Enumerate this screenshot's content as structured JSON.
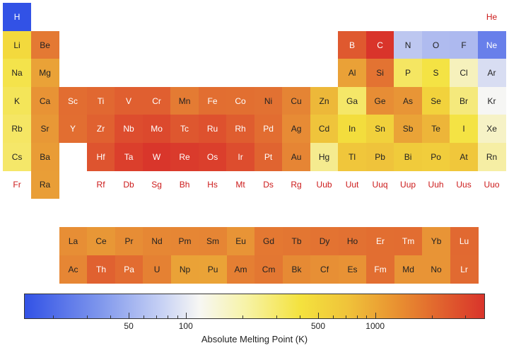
{
  "chart_data": {
    "type": "heatmap",
    "colorbar": {
      "label": "Absolute Melting Point (K)",
      "scale": "log",
      "range": [
        14,
        3800
      ],
      "tick_labels": [
        {
          "value": 50,
          "label": "50"
        },
        {
          "value": 100,
          "label": "100"
        },
        {
          "value": 500,
          "label": "500"
        },
        {
          "value": 1000,
          "label": "1000"
        }
      ],
      "minor_ticks": [
        20,
        30,
        40,
        60,
        70,
        80,
        90,
        200,
        300,
        400,
        600,
        700,
        800,
        900,
        2000,
        3000
      ],
      "colors": [
        "#3252e6",
        "#f7f7f4",
        "#f4e23e",
        "#d9342b"
      ]
    },
    "elements": [
      {
        "symbol": "H",
        "period": 1,
        "group": 1,
        "melting_point": 14
      },
      {
        "symbol": "He",
        "period": 1,
        "group": 18,
        "melting_point": null
      },
      {
        "symbol": "Li",
        "period": 2,
        "group": 1,
        "melting_point": 454
      },
      {
        "symbol": "Be",
        "period": 2,
        "group": 2,
        "melting_point": 1560
      },
      {
        "symbol": "B",
        "period": 2,
        "group": 13,
        "melting_point": 2349
      },
      {
        "symbol": "C",
        "period": 2,
        "group": 14,
        "melting_point": 3800
      },
      {
        "symbol": "N",
        "period": 2,
        "group": 15,
        "melting_point": 63
      },
      {
        "symbol": "O",
        "period": 2,
        "group": 16,
        "melting_point": 54
      },
      {
        "symbol": "F",
        "period": 2,
        "group": 17,
        "melting_point": 53
      },
      {
        "symbol": "Ne",
        "period": 2,
        "group": 18,
        "melting_point": 25
      },
      {
        "symbol": "Na",
        "period": 3,
        "group": 1,
        "melting_point": 371
      },
      {
        "symbol": "Mg",
        "period": 3,
        "group": 2,
        "melting_point": 923
      },
      {
        "symbol": "Al",
        "period": 3,
        "group": 13,
        "melting_point": 933
      },
      {
        "symbol": "Si",
        "period": 3,
        "group": 14,
        "melting_point": 1687
      },
      {
        "symbol": "P",
        "period": 3,
        "group": 15,
        "melting_point": 317
      },
      {
        "symbol": "S",
        "period": 3,
        "group": 16,
        "melting_point": 388
      },
      {
        "symbol": "Cl",
        "period": 3,
        "group": 17,
        "melting_point": 172
      },
      {
        "symbol": "Ar",
        "period": 3,
        "group": 18,
        "melting_point": 84
      },
      {
        "symbol": "K",
        "period": 4,
        "group": 1,
        "melting_point": 337
      },
      {
        "symbol": "Ca",
        "period": 4,
        "group": 2,
        "melting_point": 1115
      },
      {
        "symbol": "Sc",
        "period": 4,
        "group": 3,
        "melting_point": 1814
      },
      {
        "symbol": "Ti",
        "period": 4,
        "group": 4,
        "melting_point": 1941
      },
      {
        "symbol": "V",
        "period": 4,
        "group": 5,
        "melting_point": 2183
      },
      {
        "symbol": "Cr",
        "period": 4,
        "group": 6,
        "melting_point": 2180
      },
      {
        "symbol": "Mn",
        "period": 4,
        "group": 7,
        "melting_point": 1519
      },
      {
        "symbol": "Fe",
        "period": 4,
        "group": 8,
        "melting_point": 1811
      },
      {
        "symbol": "Co",
        "period": 4,
        "group": 9,
        "melting_point": 1768
      },
      {
        "symbol": "Ni",
        "period": 4,
        "group": 10,
        "melting_point": 1728
      },
      {
        "symbol": "Cu",
        "period": 4,
        "group": 11,
        "melting_point": 1358
      },
      {
        "symbol": "Zn",
        "period": 4,
        "group": 12,
        "melting_point": 693
      },
      {
        "symbol": "Ga",
        "period": 4,
        "group": 13,
        "melting_point": 303
      },
      {
        "symbol": "Ge",
        "period": 4,
        "group": 14,
        "melting_point": 1211
      },
      {
        "symbol": "As",
        "period": 4,
        "group": 15,
        "melting_point": 1090
      },
      {
        "symbol": "Se",
        "period": 4,
        "group": 16,
        "melting_point": 494
      },
      {
        "symbol": "Br",
        "period": 4,
        "group": 17,
        "melting_point": 266
      },
      {
        "symbol": "Kr",
        "period": 4,
        "group": 18,
        "melting_point": 116
      },
      {
        "symbol": "Rb",
        "period": 5,
        "group": 1,
        "melting_point": 312
      },
      {
        "symbol": "Sr",
        "period": 5,
        "group": 2,
        "melting_point": 1050
      },
      {
        "symbol": "Y",
        "period": 5,
        "group": 3,
        "melting_point": 1799
      },
      {
        "symbol": "Zr",
        "period": 5,
        "group": 4,
        "melting_point": 2128
      },
      {
        "symbol": "Nb",
        "period": 5,
        "group": 5,
        "melting_point": 2750
      },
      {
        "symbol": "Mo",
        "period": 5,
        "group": 6,
        "melting_point": 2896
      },
      {
        "symbol": "Tc",
        "period": 5,
        "group": 7,
        "melting_point": 2430
      },
      {
        "symbol": "Ru",
        "period": 5,
        "group": 8,
        "melting_point": 2607
      },
      {
        "symbol": "Rh",
        "period": 5,
        "group": 9,
        "melting_point": 2237
      },
      {
        "symbol": "Pd",
        "period": 5,
        "group": 10,
        "melting_point": 1828
      },
      {
        "symbol": "Ag",
        "period": 5,
        "group": 11,
        "melting_point": 1235
      },
      {
        "symbol": "Cd",
        "period": 5,
        "group": 12,
        "melting_point": 594
      },
      {
        "symbol": "In",
        "period": 5,
        "group": 13,
        "melting_point": 430
      },
      {
        "symbol": "Sn",
        "period": 5,
        "group": 14,
        "melting_point": 505
      },
      {
        "symbol": "Sb",
        "period": 5,
        "group": 15,
        "melting_point": 904
      },
      {
        "symbol": "Te",
        "period": 5,
        "group": 16,
        "melting_point": 723
      },
      {
        "symbol": "I",
        "period": 5,
        "group": 17,
        "melting_point": 387
      },
      {
        "symbol": "Xe",
        "period": 5,
        "group": 18,
        "melting_point": 161
      },
      {
        "symbol": "Cs",
        "period": 6,
        "group": 1,
        "melting_point": 302
      },
      {
        "symbol": "Ba",
        "period": 6,
        "group": 2,
        "melting_point": 1000
      },
      {
        "symbol": "Hf",
        "period": 6,
        "group": 4,
        "melting_point": 2506
      },
      {
        "symbol": "Ta",
        "period": 6,
        "group": 5,
        "melting_point": 3290
      },
      {
        "symbol": "W",
        "period": 6,
        "group": 6,
        "melting_point": 3695
      },
      {
        "symbol": "Re",
        "period": 6,
        "group": 7,
        "melting_point": 3459
      },
      {
        "symbol": "Os",
        "period": 6,
        "group": 8,
        "melting_point": 3306
      },
      {
        "symbol": "Ir",
        "period": 6,
        "group": 9,
        "melting_point": 2739
      },
      {
        "symbol": "Pt",
        "period": 6,
        "group": 10,
        "melting_point": 2041
      },
      {
        "symbol": "Au",
        "period": 6,
        "group": 11,
        "melting_point": 1337
      },
      {
        "symbol": "Hg",
        "period": 6,
        "group": 12,
        "melting_point": 234
      },
      {
        "symbol": "Tl",
        "period": 6,
        "group": 13,
        "melting_point": 577
      },
      {
        "symbol": "Pb",
        "period": 6,
        "group": 14,
        "melting_point": 601
      },
      {
        "symbol": "Bi",
        "period": 6,
        "group": 15,
        "melting_point": 544
      },
      {
        "symbol": "Po",
        "period": 6,
        "group": 16,
        "melting_point": 527
      },
      {
        "symbol": "At",
        "period": 6,
        "group": 17,
        "melting_point": 575
      },
      {
        "symbol": "Rn",
        "period": 6,
        "group": 18,
        "melting_point": 202
      },
      {
        "symbol": "Fr",
        "period": 7,
        "group": 1,
        "melting_point": null
      },
      {
        "symbol": "Ra",
        "period": 7,
        "group": 2,
        "melting_point": 973
      },
      {
        "symbol": "Rf",
        "period": 7,
        "group": 4,
        "melting_point": null
      },
      {
        "symbol": "Db",
        "period": 7,
        "group": 5,
        "melting_point": null
      },
      {
        "symbol": "Sg",
        "period": 7,
        "group": 6,
        "melting_point": null
      },
      {
        "symbol": "Bh",
        "period": 7,
        "group": 7,
        "melting_point": null
      },
      {
        "symbol": "Hs",
        "period": 7,
        "group": 8,
        "melting_point": null
      },
      {
        "symbol": "Mt",
        "period": 7,
        "group": 9,
        "melting_point": null
      },
      {
        "symbol": "Ds",
        "period": 7,
        "group": 10,
        "melting_point": null
      },
      {
        "symbol": "Rg",
        "period": 7,
        "group": 11,
        "melting_point": null
      },
      {
        "symbol": "Uub",
        "period": 7,
        "group": 12,
        "melting_point": null
      },
      {
        "symbol": "Uut",
        "period": 7,
        "group": 13,
        "melting_point": null
      },
      {
        "symbol": "Uuq",
        "period": 7,
        "group": 14,
        "melting_point": null
      },
      {
        "symbol": "Uup",
        "period": 7,
        "group": 15,
        "melting_point": null
      },
      {
        "symbol": "Uuh",
        "period": 7,
        "group": 16,
        "melting_point": null
      },
      {
        "symbol": "Uus",
        "period": 7,
        "group": 17,
        "melting_point": null
      },
      {
        "symbol": "Uuo",
        "period": 7,
        "group": 18,
        "melting_point": null
      },
      {
        "symbol": "La",
        "period": "lanthanide",
        "group": 1,
        "melting_point": 1193
      },
      {
        "symbol": "Ce",
        "period": "lanthanide",
        "group": 2,
        "melting_point": 1068
      },
      {
        "symbol": "Pr",
        "period": "lanthanide",
        "group": 3,
        "melting_point": 1208
      },
      {
        "symbol": "Nd",
        "period": "lanthanide",
        "group": 4,
        "melting_point": 1297
      },
      {
        "symbol": "Pm",
        "period": "lanthanide",
        "group": 5,
        "melting_point": 1315
      },
      {
        "symbol": "Sm",
        "period": "lanthanide",
        "group": 6,
        "melting_point": 1345
      },
      {
        "symbol": "Eu",
        "period": "lanthanide",
        "group": 7,
        "melting_point": 1099
      },
      {
        "symbol": "Gd",
        "period": "lanthanide",
        "group": 8,
        "melting_point": 1585
      },
      {
        "symbol": "Tb",
        "period": "lanthanide",
        "group": 9,
        "melting_point": 1629
      },
      {
        "symbol": "Dy",
        "period": "lanthanide",
        "group": 10,
        "melting_point": 1680
      },
      {
        "symbol": "Ho",
        "period": "lanthanide",
        "group": 11,
        "melting_point": 1734
      },
      {
        "symbol": "Er",
        "period": "lanthanide",
        "group": 12,
        "melting_point": 1802
      },
      {
        "symbol": "Tm",
        "period": "lanthanide",
        "group": 13,
        "melting_point": 1818
      },
      {
        "symbol": "Yb",
        "period": "lanthanide",
        "group": 14,
        "melting_point": 1097
      },
      {
        "symbol": "Lu",
        "period": "lanthanide",
        "group": 15,
        "melting_point": 1925
      },
      {
        "symbol": "Ac",
        "period": "actinide",
        "group": 1,
        "melting_point": 1323
      },
      {
        "symbol": "Th",
        "period": "actinide",
        "group": 2,
        "melting_point": 2115
      },
      {
        "symbol": "Pa",
        "period": "actinide",
        "group": 3,
        "melting_point": 1841
      },
      {
        "symbol": "U",
        "period": "actinide",
        "group": 4,
        "melting_point": 1405
      },
      {
        "symbol": "Np",
        "period": "actinide",
        "group": 5,
        "melting_point": 917
      },
      {
        "symbol": "Pu",
        "period": "actinide",
        "group": 6,
        "melting_point": 913
      },
      {
        "symbol": "Am",
        "period": "actinide",
        "group": 7,
        "melting_point": 1449
      },
      {
        "symbol": "Cm",
        "period": "actinide",
        "group": 8,
        "melting_point": 1613
      },
      {
        "symbol": "Bk",
        "period": "actinide",
        "group": 9,
        "melting_point": 1259
      },
      {
        "symbol": "Cf",
        "period": "actinide",
        "group": 10,
        "melting_point": 1173
      },
      {
        "symbol": "Es",
        "period": "actinide",
        "group": 11,
        "melting_point": 1133
      },
      {
        "symbol": "Fm",
        "period": "actinide",
        "group": 12,
        "melting_point": 1800
      },
      {
        "symbol": "Md",
        "period": "actinide",
        "group": 13,
        "melting_point": 1100
      },
      {
        "symbol": "No",
        "period": "actinide",
        "group": 14,
        "melting_point": 1100
      },
      {
        "symbol": "Lr",
        "period": "actinide",
        "group": 15,
        "melting_point": 1900
      }
    ]
  }
}
